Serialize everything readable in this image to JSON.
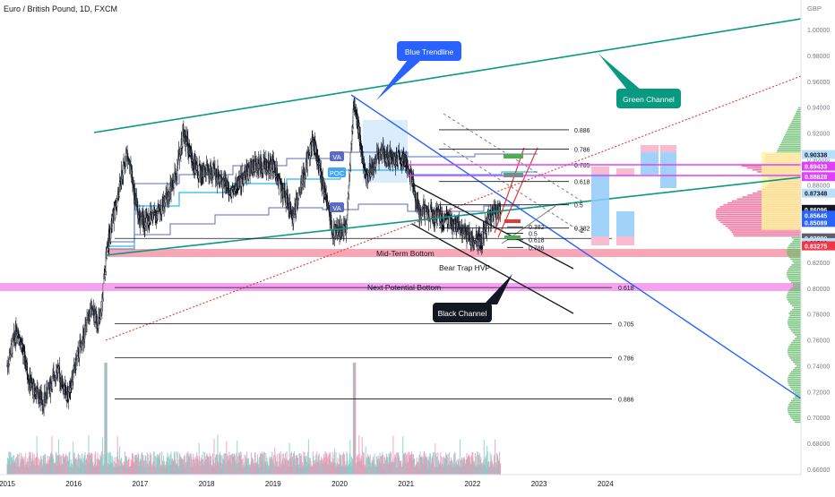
{
  "title": "Euro / British Pound, 1D, FXCM",
  "currency": "GBP",
  "colors": {
    "blue_trend": "#2962ff",
    "green_channel": "#089981",
    "red_dotted": "#e53935",
    "black": "#131722",
    "pink_band": "#f48fb1",
    "magenta_band": "#ea80fc",
    "candle_up": "#131722",
    "candle_down": "#131722",
    "vol_up": "#b2dfdb",
    "vol_down": "#f8bbd0",
    "vp_blue": "#bbdefb",
    "vp_pink": "#f06292",
    "vp_yellow": "#fff59d",
    "vp_green": "#66bb6a"
  },
  "annotations": {
    "blue_trendline": "Blue Trendline",
    "green_channel": "Green Channel",
    "black_channel": "Black Channel",
    "mid_term_bottom": "Mid-Term Bottom",
    "next_potential_bottom": "Next Potential Bottom",
    "bear_trap": "Bear Trap HVP",
    "va_top": "VA",
    "poc": "POC",
    "va_bottom": "VA",
    "extension_label": "2"
  },
  "chart_data": {
    "type": "candlestick",
    "title": "Euro / British Pound, 1D, FXCM",
    "y_unit": "GBP",
    "ylim": [
      0.655,
      1.013
    ],
    "x_ticks": [
      "2015",
      "2016",
      "2017",
      "2018",
      "2019",
      "2020",
      "2021",
      "2022",
      "2023",
      "2024"
    ],
    "y_ticks": [
      "1.00000",
      "0.98000",
      "0.96000",
      "0.94000",
      "0.92000",
      "0.90000",
      "0.88000",
      "0.86000",
      "0.84000",
      "0.82000",
      "0.80000",
      "0.78000",
      "0.76000",
      "0.74000",
      "0.72000",
      "0.70000",
      "0.68000",
      "0.66000"
    ],
    "price_path": [
      {
        "x": 2015.0,
        "y": 0.74
      },
      {
        "x": 2015.15,
        "y": 0.77
      },
      {
        "x": 2015.35,
        "y": 0.725
      },
      {
        "x": 2015.55,
        "y": 0.712
      },
      {
        "x": 2015.75,
        "y": 0.738
      },
      {
        "x": 2015.9,
        "y": 0.715
      },
      {
        "x": 2016.05,
        "y": 0.745
      },
      {
        "x": 2016.25,
        "y": 0.782
      },
      {
        "x": 2016.4,
        "y": 0.773
      },
      {
        "x": 2016.5,
        "y": 0.83
      },
      {
        "x": 2016.6,
        "y": 0.855
      },
      {
        "x": 2016.8,
        "y": 0.905
      },
      {
        "x": 2017.0,
        "y": 0.85
      },
      {
        "x": 2017.3,
        "y": 0.86
      },
      {
        "x": 2017.5,
        "y": 0.88
      },
      {
        "x": 2017.65,
        "y": 0.92
      },
      {
        "x": 2017.85,
        "y": 0.89
      },
      {
        "x": 2018.1,
        "y": 0.89
      },
      {
        "x": 2018.4,
        "y": 0.875
      },
      {
        "x": 2018.7,
        "y": 0.895
      },
      {
        "x": 2019.0,
        "y": 0.895
      },
      {
        "x": 2019.3,
        "y": 0.855
      },
      {
        "x": 2019.6,
        "y": 0.915
      },
      {
        "x": 2019.9,
        "y": 0.845
      },
      {
        "x": 2020.1,
        "y": 0.845
      },
      {
        "x": 2020.22,
        "y": 0.945
      },
      {
        "x": 2020.4,
        "y": 0.885
      },
      {
        "x": 2020.6,
        "y": 0.905
      },
      {
        "x": 2020.85,
        "y": 0.9
      },
      {
        "x": 2021.0,
        "y": 0.9
      },
      {
        "x": 2021.2,
        "y": 0.86
      },
      {
        "x": 2021.5,
        "y": 0.855
      },
      {
        "x": 2021.75,
        "y": 0.848
      },
      {
        "x": 2022.0,
        "y": 0.838
      },
      {
        "x": 2022.12,
        "y": 0.835
      },
      {
        "x": 2022.25,
        "y": 0.855
      },
      {
        "x": 2022.4,
        "y": 0.86
      }
    ],
    "fib_left_levels": [
      {
        "label": "0.5",
        "y": 0.8385
      },
      {
        "label": "0.618",
        "y": 0.8005
      },
      {
        "label": "0.705",
        "y": 0.7725
      },
      {
        "label": "0.786",
        "y": 0.7462
      },
      {
        "label": "0.886",
        "y": 0.7143
      }
    ],
    "fib_right_levels": [
      {
        "label": "0.886",
        "y": 0.9225
      },
      {
        "label": "0.786",
        "y": 0.9075
      },
      {
        "label": "0.705",
        "y": 0.8955
      },
      {
        "label": "0.618",
        "y": 0.8825
      },
      {
        "label": "0.5",
        "y": 0.8645
      },
      {
        "label": "0.382",
        "y": 0.8465
      }
    ],
    "fib_small_levels": [
      {
        "label": "0.382",
        "y": 0.8475
      },
      {
        "label": "0.5",
        "y": 0.8425
      },
      {
        "label": "0.618",
        "y": 0.8375
      },
      {
        "label": "0.786",
        "y": 0.8315
      }
    ],
    "price_tags": [
      {
        "value": "0.90338",
        "bg": "#bbdefb",
        "fg": "#131722"
      },
      {
        "value": "0.89433",
        "bg": "#e040fb",
        "fg": "#ffffff"
      },
      {
        "value": "0.88628",
        "bg": "#e040fb",
        "fg": "#ffffff"
      },
      {
        "value": "0.87348",
        "bg": "#bbdefb",
        "fg": "#131722"
      },
      {
        "value": "0.86096",
        "bg": "#131722",
        "fg": "#ffffff"
      },
      {
        "value": "0.85645",
        "bg": "#2962ff",
        "fg": "#ffffff"
      },
      {
        "value": "0.85089",
        "bg": "#2962ff",
        "fg": "#ffffff"
      },
      {
        "value": "0.83880",
        "bg": "#131722",
        "fg": "#ffffff"
      },
      {
        "value": "0.83880",
        "bg": "#5d606b",
        "fg": "#ffffff"
      },
      {
        "value": "0.83526",
        "bg": "#bbdefb",
        "fg": "#131722"
      },
      {
        "value": "0.83275",
        "bg": "#f23645",
        "fg": "#ffffff"
      },
      {
        "value": "0.83275",
        "bg": "#f23645",
        "fg": "#ffffff"
      }
    ]
  }
}
